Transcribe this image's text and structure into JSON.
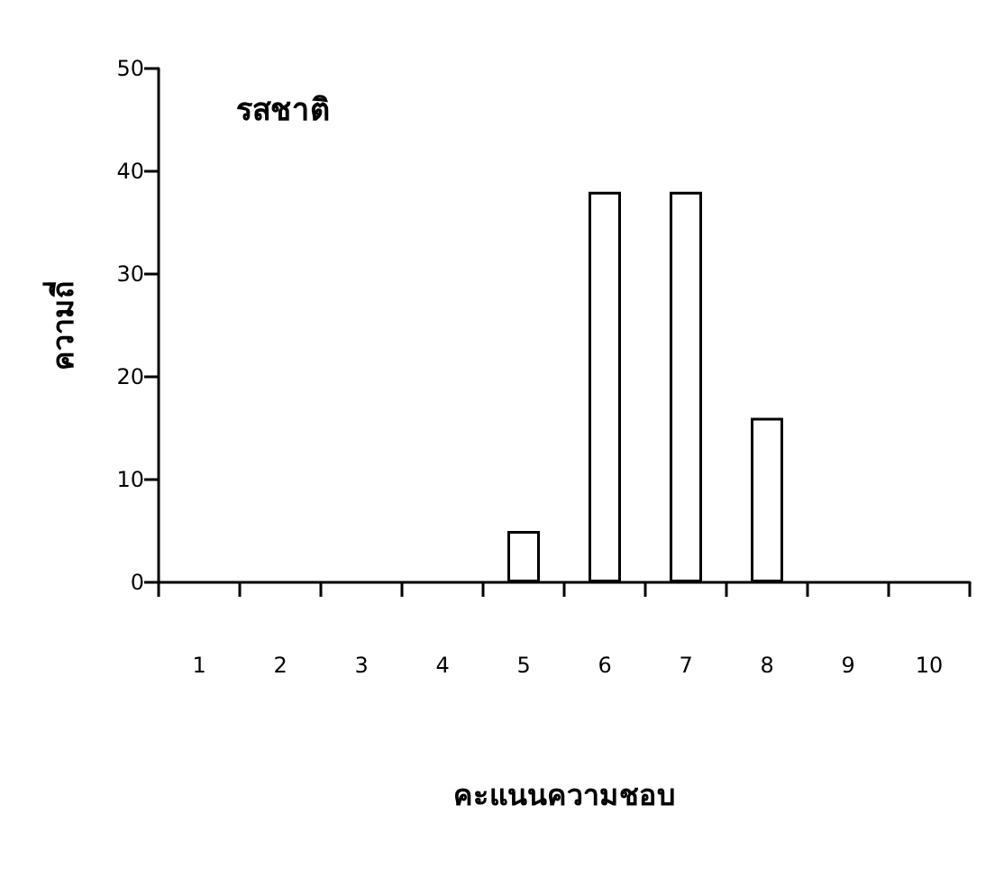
{
  "chart_data": {
    "type": "bar",
    "title": "รสชาติ",
    "xlabel": "คะแนนความชอบ",
    "ylabel": "ความถี่",
    "categories": [
      "1",
      "2",
      "3",
      "4",
      "5",
      "6",
      "7",
      "8",
      "9",
      "10"
    ],
    "values": [
      0,
      0,
      0,
      0,
      5,
      38,
      38,
      16,
      0,
      0
    ],
    "color": "#ffffff",
    "ylim": [
      0,
      50
    ],
    "yticks": [
      0,
      10,
      20,
      30,
      40,
      50
    ],
    "grid": false
  }
}
